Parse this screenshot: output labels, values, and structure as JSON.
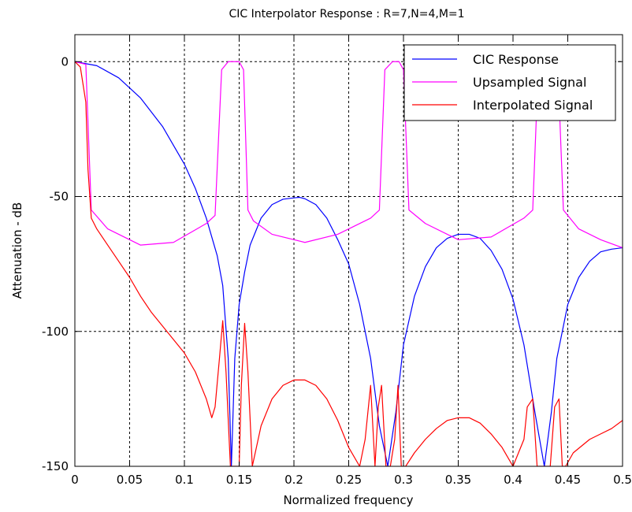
{
  "chart_data": {
    "type": "line",
    "title": "CIC Interpolator Response : R=7,N=4,M=1",
    "xlabel": "Normalized frequency",
    "ylabel": "Attenuation - dB",
    "xlim": [
      0,
      0.5
    ],
    "ylim": [
      -150,
      10
    ],
    "grid": true,
    "grid_style": "dashed",
    "legend_position": "top-right",
    "x_ticks": [
      0,
      0.05,
      0.1,
      0.15,
      0.2,
      0.25,
      0.3,
      0.35,
      0.4,
      0.45,
      0.5
    ],
    "x_tick_labels": [
      "0",
      "0.05",
      "0.1",
      "0.15",
      "0.2",
      "0.25",
      "0.3",
      "0.35",
      "0.4",
      "0.45",
      "0.5"
    ],
    "y_ticks": [
      0,
      -50,
      -100,
      -150
    ],
    "y_tick_labels": [
      "0",
      "-50",
      "-100",
      "-150"
    ],
    "series": [
      {
        "name": "CIC Response",
        "color": "#0000ff",
        "x": [
          0,
          0.02,
          0.04,
          0.06,
          0.08,
          0.1,
          0.11,
          0.12,
          0.13,
          0.135,
          0.14,
          0.1429,
          0.146,
          0.15,
          0.155,
          0.16,
          0.17,
          0.18,
          0.19,
          0.2,
          0.205,
          0.21,
          0.22,
          0.23,
          0.24,
          0.25,
          0.26,
          0.27,
          0.278,
          0.2857,
          0.293,
          0.3,
          0.31,
          0.32,
          0.33,
          0.34,
          0.35,
          0.36,
          0.37,
          0.38,
          0.39,
          0.4,
          0.41,
          0.42,
          0.4286,
          0.435,
          0.44,
          0.45,
          0.46,
          0.47,
          0.48,
          0.49,
          0.5
        ],
        "values": [
          0,
          -1.5,
          -6,
          -13.5,
          -24,
          -38,
          -47,
          -58,
          -72,
          -83,
          -110,
          -150,
          -110,
          -90,
          -78,
          -68,
          -58,
          -53,
          -51,
          -50.5,
          -50.3,
          -50.8,
          -53,
          -58,
          -66,
          -75,
          -90,
          -110,
          -135,
          -150,
          -130,
          -105,
          -87,
          -76,
          -69,
          -65.5,
          -64,
          -64,
          -65.5,
          -70,
          -77,
          -88,
          -105,
          -130,
          -150,
          -130,
          -110,
          -90,
          -80,
          -74,
          -70.5,
          -69.5,
          -69
        ]
      },
      {
        "name": "Upsampled Signal",
        "color": "#ff00ff",
        "x": [
          0,
          0.01,
          0.015,
          0.03,
          0.06,
          0.09,
          0.12,
          0.128,
          0.134,
          0.14,
          0.15,
          0.154,
          0.158,
          0.163,
          0.18,
          0.21,
          0.24,
          0.27,
          0.278,
          0.283,
          0.29,
          0.296,
          0.3,
          0.305,
          0.32,
          0.35,
          0.38,
          0.41,
          0.418,
          0.423,
          0.43,
          0.437,
          0.441,
          0.446,
          0.46,
          0.48,
          0.5
        ],
        "values": [
          0,
          -1,
          -55,
          -62,
          -68,
          -67,
          -60,
          -57,
          -3,
          0,
          0,
          -3,
          -55,
          -59,
          -64,
          -67,
          -64,
          -58,
          -55,
          -3,
          0,
          0,
          -3,
          -55,
          -60,
          -66,
          -65,
          -58,
          -55,
          -3,
          0,
          0,
          -3,
          -55,
          -62,
          -66,
          -69
        ]
      },
      {
        "name": "Interpolated Signal",
        "color": "#ff0000",
        "x": [
          0,
          0.005,
          0.01,
          0.012,
          0.015,
          0.02,
          0.03,
          0.04,
          0.05,
          0.06,
          0.07,
          0.08,
          0.09,
          0.1,
          0.11,
          0.12,
          0.125,
          0.128,
          0.132,
          0.135,
          0.138,
          0.142,
          0.146,
          0.15,
          0.152,
          0.155,
          0.158,
          0.162,
          0.17,
          0.18,
          0.19,
          0.2,
          0.21,
          0.22,
          0.23,
          0.24,
          0.25,
          0.26,
          0.265,
          0.27,
          0.274,
          0.277,
          0.28,
          0.284,
          0.288,
          0.292,
          0.295,
          0.298,
          0.302,
          0.31,
          0.32,
          0.33,
          0.34,
          0.35,
          0.36,
          0.37,
          0.38,
          0.39,
          0.4,
          0.41,
          0.413,
          0.418,
          0.422,
          0.426,
          0.43,
          0.434,
          0.438,
          0.442,
          0.445,
          0.448,
          0.455,
          0.47,
          0.49,
          0.5
        ],
        "values": [
          0,
          -2,
          -15,
          -40,
          -58,
          -62,
          -68,
          -74,
          -80,
          -87,
          -93,
          -98,
          -103,
          -108,
          -115,
          -125,
          -132,
          -128,
          -110,
          -96,
          -115,
          -150,
          -150,
          -150,
          -120,
          -97,
          -115,
          -150,
          -135,
          -125,
          -120,
          -118,
          -118,
          -120,
          -125,
          -133,
          -143,
          -150,
          -140,
          -120,
          -150,
          -128,
          -120,
          -150,
          -150,
          -140,
          -120,
          -150,
          -150,
          -145,
          -140,
          -136,
          -133,
          -132,
          -132,
          -134,
          -138,
          -143,
          -150,
          -140,
          -128,
          -125,
          -150,
          -150,
          -150,
          -150,
          -128,
          -125,
          -150,
          -150,
          -145,
          -140,
          -136,
          -133
        ]
      }
    ]
  }
}
